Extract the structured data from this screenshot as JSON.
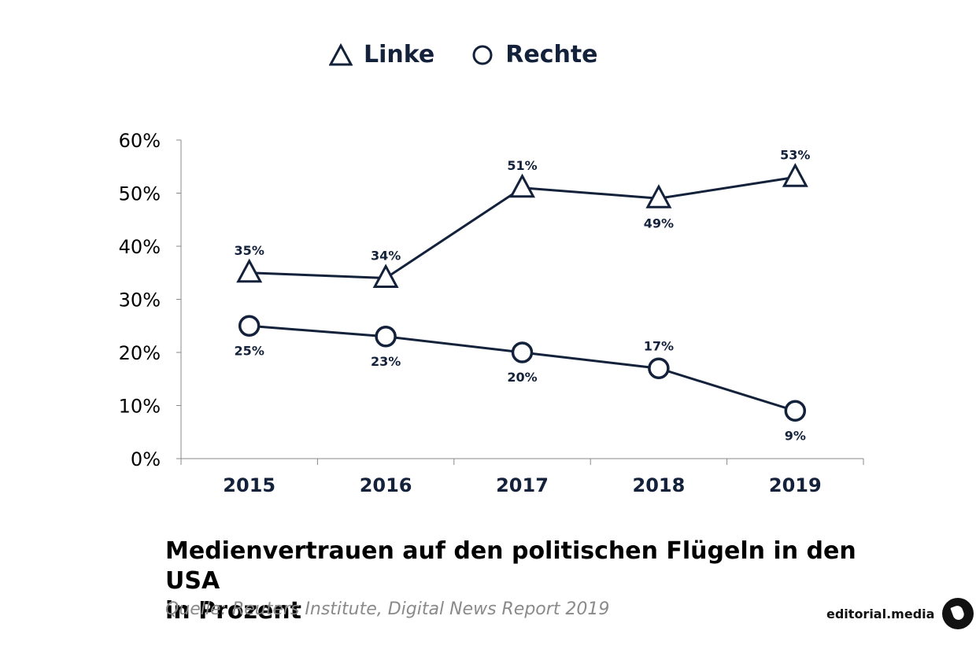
{
  "chart_data": {
    "type": "line",
    "categories": [
      "2015",
      "2016",
      "2017",
      "2018",
      "2019"
    ],
    "series": [
      {
        "name": "Linke",
        "marker": "triangle",
        "values": [
          35,
          34,
          51,
          49,
          53
        ],
        "labels": [
          "35%",
          "34%",
          "51%",
          "49%",
          "53%"
        ],
        "label_position": [
          "above",
          "above",
          "above",
          "below",
          "above"
        ]
      },
      {
        "name": "Rechte",
        "marker": "circle",
        "values": [
          25,
          23,
          20,
          17,
          9
        ],
        "labels": [
          "25%",
          "23%",
          "20%",
          "17%",
          "9%"
        ],
        "label_position": [
          "below",
          "below",
          "below",
          "above",
          "below"
        ]
      }
    ],
    "yticks": [
      "0%",
      "10%",
      "20%",
      "30%",
      "40%",
      "50%",
      "60%"
    ],
    "ylim": [
      0,
      60
    ],
    "grid": false,
    "legend_position": "top",
    "color": "#13213a"
  },
  "title_line1": "Medienvertrauen auf den politischen Flügeln in den USA",
  "title_line2": "in Prozent",
  "source": "Quelle: Reuters Institute, Digital News Report 2019",
  "brand": "editorial.media"
}
